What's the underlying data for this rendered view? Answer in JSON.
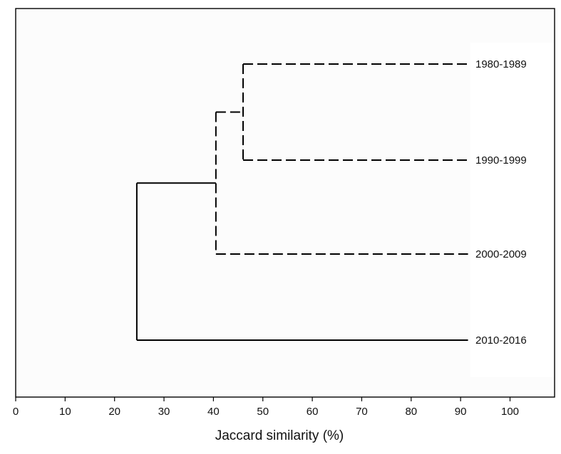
{
  "chart_data": {
    "type": "dendrogram",
    "title": "",
    "xlabel": "Jaccard similarity (%)",
    "ylabel": "",
    "xlim": [
      0,
      110
    ],
    "xticks": [
      "0",
      "10",
      "20",
      "30",
      "40",
      "50",
      "60",
      "70",
      "80",
      "90",
      "100"
    ],
    "grid": false,
    "leaves": [
      "1980-1989",
      "1990-1999",
      "2000-2009",
      "2010-2016"
    ],
    "merges": [
      {
        "join": [
          "1980-1989",
          "1990-1999"
        ],
        "similarity": 46.0,
        "line_style": "dashed"
      },
      {
        "join": [
          "1980-1989 + 1990-1999",
          "2000-2009"
        ],
        "similarity": 40.5,
        "line_style": "dashed"
      },
      {
        "join": [
          "1980-1989 + 1990-1999 + 2000-2009",
          "2010-2016"
        ],
        "similarity": 24.5,
        "line_style": "solid"
      }
    ],
    "leaf_line_end": 91.5
  }
}
